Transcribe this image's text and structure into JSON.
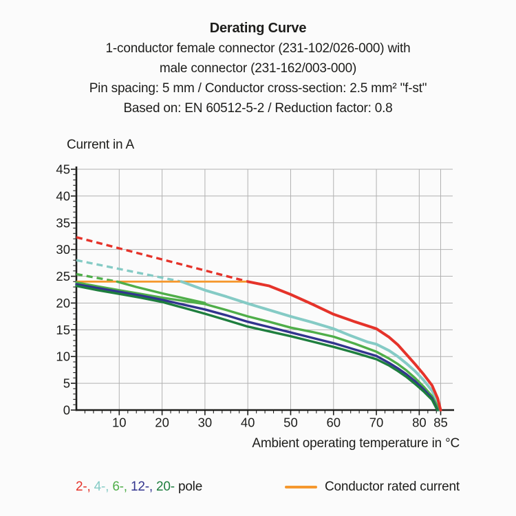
{
  "header": {
    "title": "Derating Curve",
    "subtitle_lines": [
      "1-conductor female connector (231-102/026-000) with",
      "male connector (231-162/003-000)",
      "Pin spacing: 5 mm / Conductor cross-section: 2.5 mm² \"f-st\"",
      "Based on: EN 60512-5-2 / Reduction factor: 0.8"
    ]
  },
  "chart_data": {
    "type": "line",
    "title": "Derating Curve",
    "xlabel": "Ambient operating temperature in °C",
    "ylabel": "Current in A",
    "xlim": [
      0,
      88
    ],
    "ylim": [
      0,
      45
    ],
    "grid": true,
    "x_major_ticks": [
      10,
      20,
      30,
      40,
      50,
      60,
      70,
      80,
      85
    ],
    "x_minor_tick_step": 2,
    "y_major_ticks": [
      0,
      5,
      10,
      15,
      20,
      25,
      30,
      35,
      40,
      45
    ],
    "y_minor_tick_step": 1,
    "grid_color": "#b1b1b1",
    "axis_color": "#1d1d1b",
    "rated_current_line": {
      "label": "Conductor rated current",
      "value": 24,
      "x_start": 0,
      "x_end": 40,
      "color": "#f5982e",
      "width": 2.8
    },
    "series": [
      {
        "name": "2-pole-above-rated",
        "pole": "2",
        "style": "dashed",
        "color": "#e5332a",
        "width": 3.4,
        "points": [
          [
            0,
            32.3
          ],
          [
            40,
            24
          ]
        ]
      },
      {
        "name": "4-pole-above-rated",
        "pole": "4",
        "style": "dashed",
        "color": "#85cbc5",
        "width": 3.4,
        "points": [
          [
            0,
            28
          ],
          [
            24.5,
            24
          ]
        ]
      },
      {
        "name": "6-pole-above-rated",
        "pole": "6",
        "style": "dashed",
        "color": "#4fae49",
        "width": 3.4,
        "points": [
          [
            0,
            25.4
          ],
          [
            9.5,
            24
          ]
        ]
      },
      {
        "name": "4-pole",
        "pole": "4",
        "style": "solid",
        "color": "#85cbc5",
        "width": 4,
        "points": [
          [
            24.5,
            24
          ],
          [
            30,
            22.4
          ],
          [
            35,
            21.2
          ],
          [
            40,
            19.9
          ],
          [
            45,
            18.7
          ],
          [
            50,
            17.5
          ],
          [
            55,
            16.4
          ],
          [
            60,
            15.2
          ],
          [
            64,
            13.9
          ],
          [
            68,
            12.7
          ],
          [
            70,
            12.3
          ],
          [
            73,
            11.1
          ],
          [
            75,
            10
          ],
          [
            77,
            8.7
          ],
          [
            79,
            7.3
          ],
          [
            81,
            5.6
          ],
          [
            83,
            3.6
          ],
          [
            84.2,
            1.6
          ],
          [
            84.7,
            0
          ]
        ]
      },
      {
        "name": "6-pole-upper",
        "pole": "6",
        "style": "solid",
        "color": "#4fae49",
        "width": 3.4,
        "points": [
          [
            9.5,
            24
          ],
          [
            14,
            23
          ],
          [
            20,
            21.8
          ],
          [
            25,
            20.9
          ],
          [
            30,
            20
          ]
        ]
      },
      {
        "name": "6-pole",
        "pole": "6",
        "style": "solid",
        "color": "#4fae49",
        "width": 3.4,
        "points": [
          [
            0,
            23.85
          ],
          [
            5,
            23.1
          ],
          [
            10,
            22.4
          ],
          [
            15,
            21.7
          ],
          [
            20,
            21
          ],
          [
            25,
            20.4
          ],
          [
            30,
            19.8
          ],
          [
            35,
            18.7
          ],
          [
            40,
            17.5
          ],
          [
            45,
            16.5
          ],
          [
            50,
            15.4
          ],
          [
            55,
            14.6
          ],
          [
            60,
            13.7
          ],
          [
            65,
            12.4
          ],
          [
            70,
            10.9
          ],
          [
            73,
            9.6
          ],
          [
            75,
            8.6
          ],
          [
            77,
            7.4
          ],
          [
            79,
            6
          ],
          [
            81,
            4.4
          ],
          [
            83,
            2.6
          ],
          [
            84.2,
            0.8
          ],
          [
            84.5,
            0
          ]
        ]
      },
      {
        "name": "12-pole",
        "pole": "12",
        "style": "solid",
        "color": "#32348e",
        "width": 3.4,
        "points": [
          [
            0,
            23.5
          ],
          [
            5,
            22.8
          ],
          [
            10,
            22.1
          ],
          [
            15,
            21.4
          ],
          [
            20,
            20.6
          ],
          [
            25,
            19.7
          ],
          [
            30,
            18.8
          ],
          [
            35,
            17.7
          ],
          [
            40,
            16.5
          ],
          [
            45,
            15.5
          ],
          [
            50,
            14.5
          ],
          [
            55,
            13.5
          ],
          [
            60,
            12.5
          ],
          [
            65,
            11.3
          ],
          [
            70,
            10.1
          ],
          [
            73,
            8.8
          ],
          [
            75,
            7.8
          ],
          [
            77,
            6.7
          ],
          [
            79,
            5.4
          ],
          [
            81,
            3.9
          ],
          [
            83,
            2.2
          ],
          [
            84.3,
            0
          ]
        ]
      },
      {
        "name": "20-pole",
        "pole": "20",
        "style": "solid",
        "color": "#1e7e3e",
        "width": 3.4,
        "points": [
          [
            0,
            23.2
          ],
          [
            5,
            22.4
          ],
          [
            10,
            21.7
          ],
          [
            15,
            21
          ],
          [
            20,
            20.2
          ],
          [
            25,
            19.1
          ],
          [
            30,
            18
          ],
          [
            35,
            16.8
          ],
          [
            40,
            15.6
          ],
          [
            45,
            14.7
          ],
          [
            50,
            13.8
          ],
          [
            55,
            12.8
          ],
          [
            60,
            11.8
          ],
          [
            65,
            10.7
          ],
          [
            70,
            9.5
          ],
          [
            73,
            8.3
          ],
          [
            75,
            7.3
          ],
          [
            77,
            6.2
          ],
          [
            79,
            4.9
          ],
          [
            81,
            3.5
          ],
          [
            83,
            1.9
          ],
          [
            84.2,
            0
          ]
        ]
      },
      {
        "name": "2-pole",
        "pole": "2",
        "style": "solid",
        "color": "#e5332a",
        "width": 4,
        "points": [
          [
            40,
            24
          ],
          [
            45,
            23.2
          ],
          [
            50,
            21.6
          ],
          [
            55,
            19.8
          ],
          [
            60,
            17.9
          ],
          [
            65,
            16.5
          ],
          [
            70,
            15.2
          ],
          [
            73,
            13.6
          ],
          [
            75,
            12.2
          ],
          [
            77,
            10.4
          ],
          [
            79,
            8.6
          ],
          [
            81,
            6.7
          ],
          [
            83,
            4.6
          ],
          [
            84.3,
            2.2
          ],
          [
            85,
            0
          ]
        ]
      }
    ]
  },
  "legend": {
    "poles": [
      {
        "label": "2-,",
        "color": "#e5332a"
      },
      {
        "label": "4-,",
        "color": "#85cbc5"
      },
      {
        "label": "6-,",
        "color": "#4fae49"
      },
      {
        "label": "12-,",
        "color": "#32348e"
      },
      {
        "label": "20-",
        "color": "#1e7e3e"
      }
    ],
    "poles_suffix": "pole",
    "rated_label": "Conductor rated current",
    "rated_color": "#f5982e"
  }
}
